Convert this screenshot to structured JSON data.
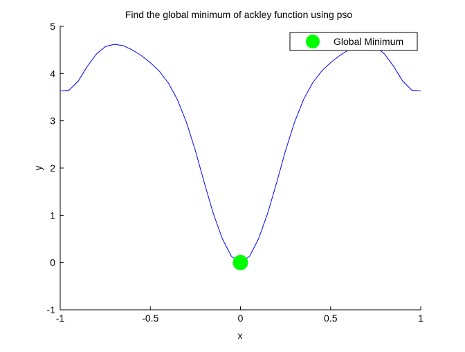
{
  "chart_data": {
    "type": "line",
    "title": "Find the global minimum of ackley function using pso",
    "xlabel": "x",
    "ylabel": "y",
    "xlim": [
      -1,
      1
    ],
    "ylim": [
      -1,
      5
    ],
    "xticks": [
      -1,
      -0.5,
      0,
      0.5,
      1
    ],
    "xtick_labels": [
      "-1",
      "-0.5",
      "0",
      "0.5",
      "1"
    ],
    "yticks": [
      -1,
      0,
      1,
      2,
      3,
      4,
      5
    ],
    "ytick_labels": [
      "-1",
      "0",
      "1",
      "2",
      "3",
      "4",
      "5"
    ],
    "grid": false,
    "legend_position": "top-right",
    "series": [
      {
        "kind": "line",
        "color": "#0000ff",
        "x": [
          -1.0,
          -0.95,
          -0.9,
          -0.85,
          -0.8,
          -0.75,
          -0.7,
          -0.65,
          -0.6,
          -0.55,
          -0.5,
          -0.45,
          -0.4,
          -0.35,
          -0.3,
          -0.25,
          -0.2,
          -0.15,
          -0.1,
          -0.05,
          0.0,
          0.05,
          0.1,
          0.15,
          0.2,
          0.25,
          0.3,
          0.35,
          0.4,
          0.45,
          0.5,
          0.55,
          0.6,
          0.65,
          0.7,
          0.75,
          0.8,
          0.85,
          0.9,
          0.95,
          1.0
        ],
        "y": [
          3.63,
          3.65,
          3.84,
          4.15,
          4.41,
          4.57,
          4.62,
          4.59,
          4.5,
          4.38,
          4.23,
          4.05,
          3.8,
          3.45,
          2.97,
          2.37,
          1.68,
          1.03,
          0.5,
          0.13,
          0.0,
          0.13,
          0.5,
          1.03,
          1.68,
          2.37,
          2.97,
          3.45,
          3.8,
          4.05,
          4.23,
          4.38,
          4.5,
          4.59,
          4.62,
          4.57,
          4.41,
          4.15,
          3.84,
          3.65,
          3.63
        ]
      },
      {
        "name": "Global Minimum",
        "kind": "marker",
        "color": "#00ff00",
        "x": [
          0
        ],
        "y": [
          0
        ]
      }
    ]
  }
}
